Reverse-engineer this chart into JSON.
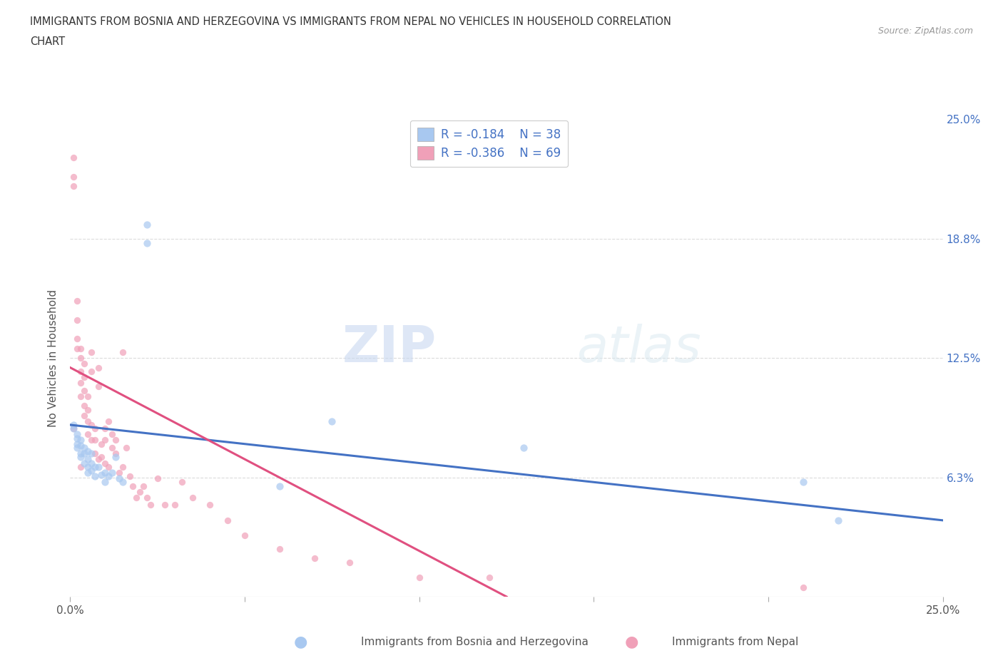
{
  "title_line1": "IMMIGRANTS FROM BOSNIA AND HERZEGOVINA VS IMMIGRANTS FROM NEPAL NO VEHICLES IN HOUSEHOLD CORRELATION",
  "title_line2": "CHART",
  "source": "Source: ZipAtlas.com",
  "ylabel": "No Vehicles in Household",
  "xlim": [
    0.0,
    0.25
  ],
  "ylim": [
    0.0,
    0.25
  ],
  "xticklabels": [
    "0.0%",
    "",
    "",
    "",
    "",
    "25.0%"
  ],
  "xtick_vals": [
    0.0,
    0.05,
    0.1,
    0.15,
    0.2,
    0.25
  ],
  "yticks_right": [
    0.0,
    0.0625,
    0.125,
    0.1875,
    0.25
  ],
  "yticks_right_labels": [
    "",
    "6.3%",
    "12.5%",
    "18.8%",
    "25.0%"
  ],
  "watermark_zip": "ZIP",
  "watermark_atlas": "atlas",
  "color_bosnia": "#a8c8f0",
  "color_nepal": "#f0a0b8",
  "line_color_bosnia": "#4472c4",
  "line_color_nepal": "#e05080",
  "legend_R_bosnia": "R = -0.184",
  "legend_N_bosnia": "N = 38",
  "legend_R_nepal": "R = -0.386",
  "legend_N_nepal": "N = 69",
  "bosnia_x": [
    0.001,
    0.001,
    0.002,
    0.002,
    0.002,
    0.002,
    0.003,
    0.003,
    0.003,
    0.003,
    0.004,
    0.004,
    0.004,
    0.005,
    0.005,
    0.005,
    0.005,
    0.006,
    0.006,
    0.006,
    0.007,
    0.007,
    0.008,
    0.009,
    0.01,
    0.01,
    0.011,
    0.012,
    0.013,
    0.014,
    0.015,
    0.022,
    0.022,
    0.06,
    0.075,
    0.13,
    0.21,
    0.22
  ],
  "bosnia_y": [
    0.09,
    0.088,
    0.085,
    0.083,
    0.08,
    0.078,
    0.082,
    0.079,
    0.075,
    0.073,
    0.078,
    0.075,
    0.07,
    0.076,
    0.072,
    0.068,
    0.065,
    0.075,
    0.07,
    0.066,
    0.068,
    0.063,
    0.068,
    0.064,
    0.065,
    0.06,
    0.063,
    0.065,
    0.073,
    0.062,
    0.06,
    0.195,
    0.185,
    0.058,
    0.092,
    0.078,
    0.06,
    0.04
  ],
  "nepal_x": [
    0.001,
    0.001,
    0.001,
    0.002,
    0.002,
    0.002,
    0.002,
    0.003,
    0.003,
    0.003,
    0.003,
    0.003,
    0.004,
    0.004,
    0.004,
    0.004,
    0.004,
    0.005,
    0.005,
    0.005,
    0.005,
    0.006,
    0.006,
    0.006,
    0.006,
    0.007,
    0.007,
    0.007,
    0.008,
    0.008,
    0.008,
    0.009,
    0.009,
    0.01,
    0.01,
    0.01,
    0.011,
    0.011,
    0.012,
    0.012,
    0.013,
    0.013,
    0.014,
    0.015,
    0.015,
    0.016,
    0.017,
    0.018,
    0.019,
    0.02,
    0.021,
    0.022,
    0.023,
    0.025,
    0.027,
    0.03,
    0.032,
    0.035,
    0.04,
    0.045,
    0.05,
    0.06,
    0.07,
    0.08,
    0.1,
    0.12,
    0.21,
    0.001,
    0.003
  ],
  "nepal_y": [
    0.23,
    0.22,
    0.215,
    0.155,
    0.145,
    0.135,
    0.13,
    0.13,
    0.125,
    0.118,
    0.112,
    0.105,
    0.122,
    0.115,
    0.108,
    0.1,
    0.095,
    0.105,
    0.098,
    0.092,
    0.085,
    0.128,
    0.118,
    0.09,
    0.082,
    0.088,
    0.082,
    0.075,
    0.12,
    0.11,
    0.072,
    0.08,
    0.073,
    0.088,
    0.082,
    0.07,
    0.092,
    0.068,
    0.085,
    0.078,
    0.082,
    0.075,
    0.065,
    0.128,
    0.068,
    0.078,
    0.063,
    0.058,
    0.052,
    0.055,
    0.058,
    0.052,
    0.048,
    0.062,
    0.048,
    0.048,
    0.06,
    0.052,
    0.048,
    0.04,
    0.032,
    0.025,
    0.02,
    0.018,
    0.01,
    0.01,
    0.005,
    0.088,
    0.068
  ],
  "background_color": "#ffffff",
  "grid_color": "#cccccc",
  "scatter_size_bosnia": 55,
  "scatter_size_nepal": 45,
  "scatter_alpha": 0.7
}
